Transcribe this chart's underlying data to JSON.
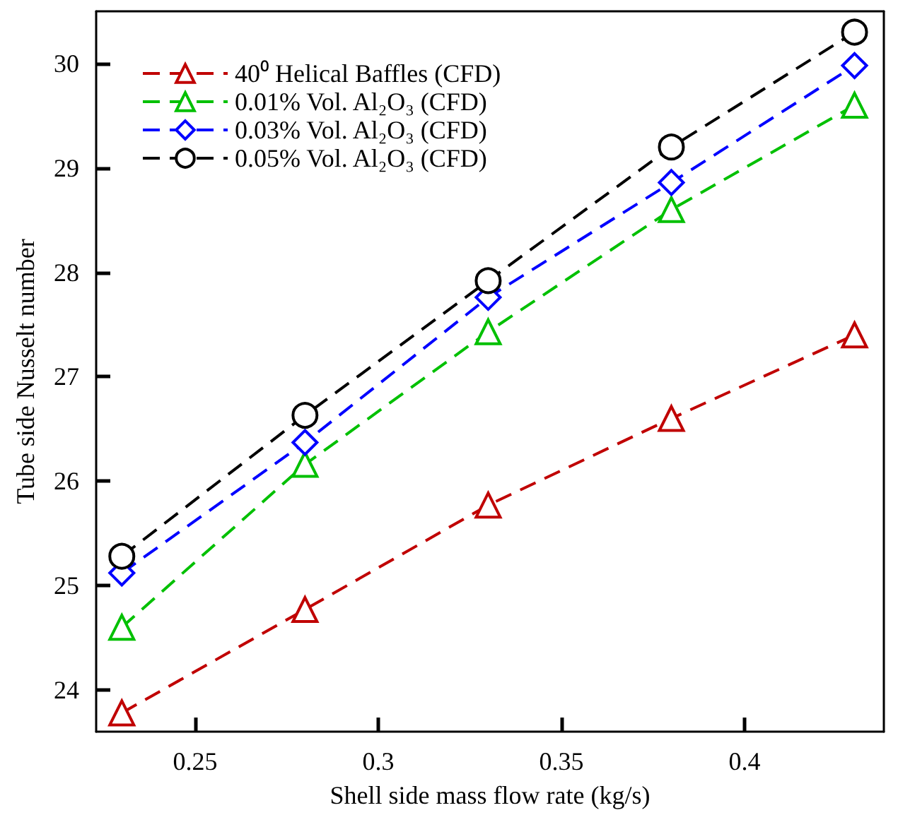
{
  "chart_data": {
    "type": "line",
    "xlabel": "Shell side mass flow rate (kg/s)",
    "ylabel": "Tube side Nusselt number",
    "x": [
      0.23,
      0.28,
      0.33,
      0.38,
      0.43
    ],
    "series": [
      {
        "name": "40⁰ Helical Baffles (CFD)",
        "color": "#c00000",
        "marker": "triangle",
        "line_style": "dashed",
        "values": [
          23.78,
          24.77,
          25.77,
          26.6,
          27.4
        ]
      },
      {
        "name": "0.01% Vol. Al₂O₃ (CFD)",
        "color": "#00c000",
        "marker": "triangle",
        "line_style": "dashed",
        "values": [
          24.6,
          26.16,
          27.43,
          28.6,
          29.6
        ]
      },
      {
        "name": "0.03% Vol. Al₂O₃ (CFD)",
        "color": "#0000ff",
        "marker": "diamond",
        "line_style": "dashed",
        "values": [
          25.12,
          26.37,
          27.76,
          28.86,
          29.98
        ]
      },
      {
        "name": "0.05% Vol. Al₂O₃ (CFD)",
        "color": "#000000",
        "marker": "circle",
        "line_style": "dashed",
        "values": [
          25.28,
          26.63,
          27.92,
          29.2,
          30.3
        ]
      }
    ],
    "xlim": [
      0.223,
      0.438
    ],
    "xticks": [
      0.25,
      0.3,
      0.35,
      0.4
    ],
    "ylim": [
      23.6,
      30.5
    ],
    "yticks": [
      24,
      25,
      26,
      27,
      28,
      29,
      30
    ],
    "grid": false,
    "legend": "top left"
  }
}
